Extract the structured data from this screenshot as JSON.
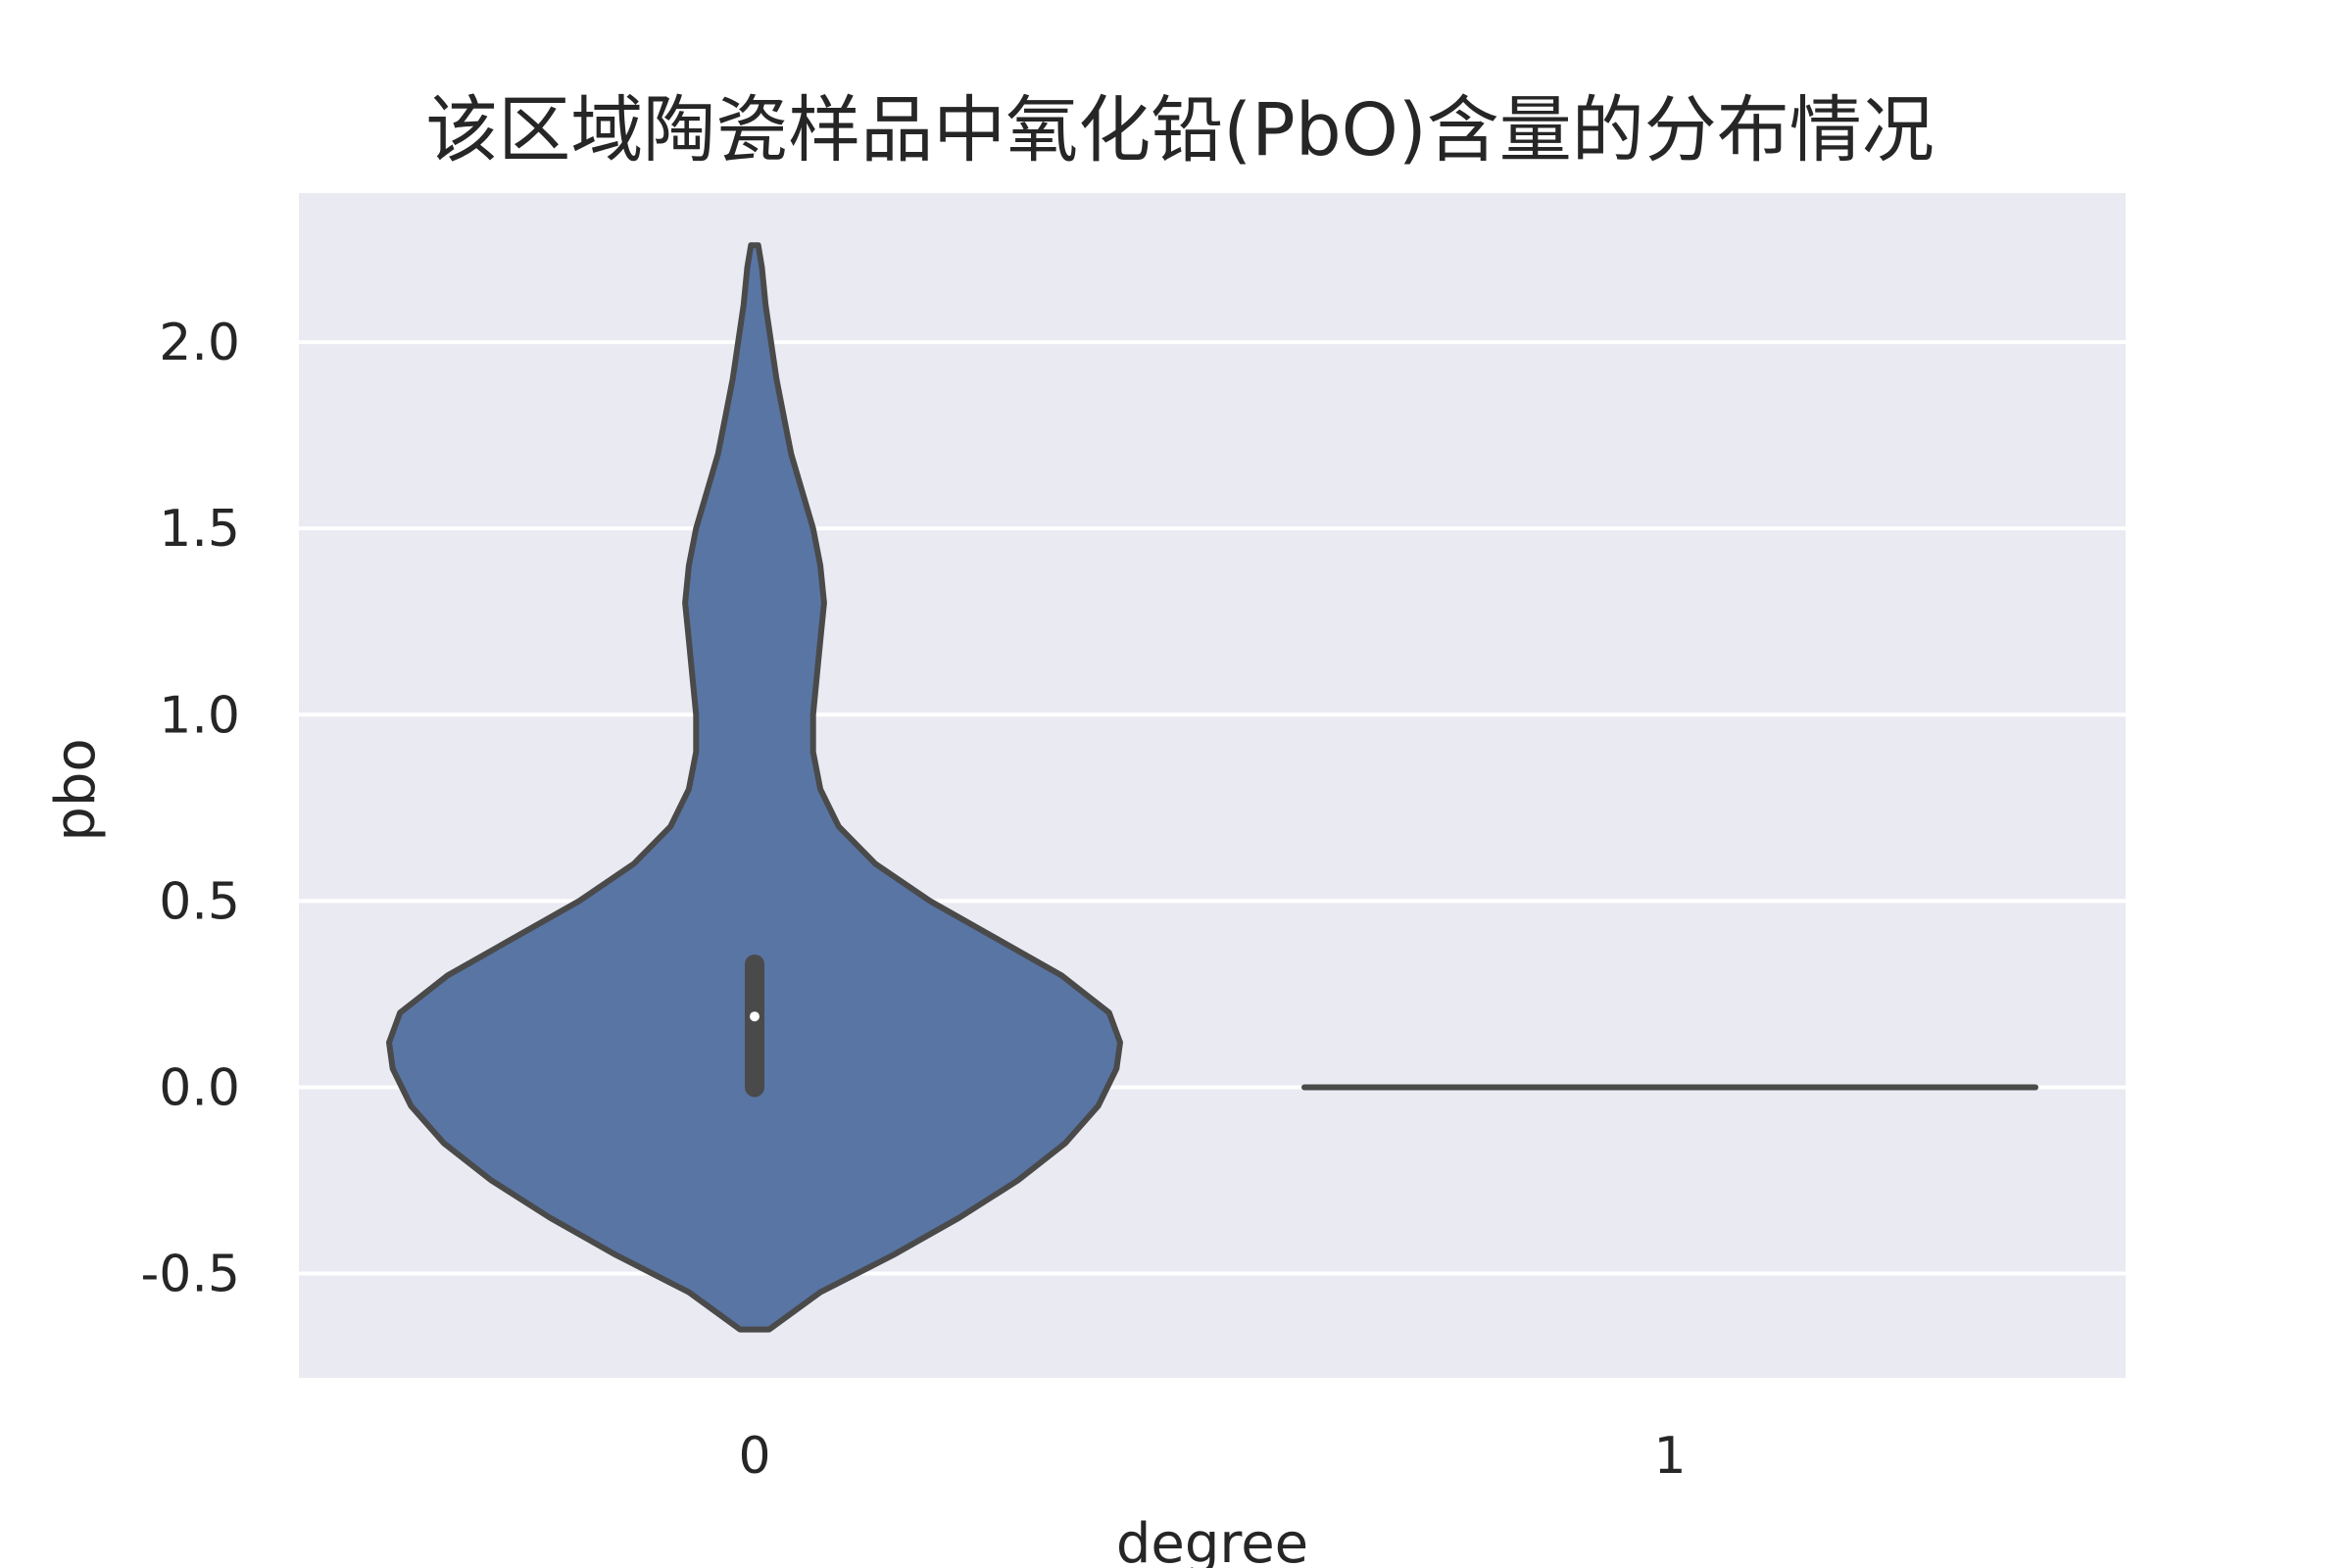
{
  "chart_data": {
    "type": "violin",
    "title": "该区域陶瓷样品中氧化铅(PbO)含量的分布情况",
    "xlabel": "degree",
    "ylabel": "pbo",
    "categories": [
      "0",
      "1"
    ],
    "y_ticks": [
      -0.5,
      0.0,
      0.5,
      1.0,
      1.5,
      2.0
    ],
    "y_tick_labels": [
      "-0.5",
      "0.0",
      "0.5",
      "1.0",
      "1.5",
      "2.0"
    ],
    "ylim": [
      -0.78,
      2.4
    ],
    "grid": true,
    "series": [
      {
        "category": "0",
        "color": "#5975a4",
        "edge_color": "#4a4a4a",
        "min": -0.65,
        "max": 2.26,
        "median": 0.19,
        "q1": 0.0,
        "q3": 0.33,
        "density_profile": [
          [
            -0.65,
            0.04
          ],
          [
            -0.55,
            0.18
          ],
          [
            -0.45,
            0.38
          ],
          [
            -0.35,
            0.56
          ],
          [
            -0.25,
            0.72
          ],
          [
            -0.15,
            0.85
          ],
          [
            -0.05,
            0.94
          ],
          [
            0.05,
            0.99
          ],
          [
            0.12,
            1.0
          ],
          [
            0.2,
            0.97
          ],
          [
            0.3,
            0.84
          ],
          [
            0.4,
            0.66
          ],
          [
            0.5,
            0.48
          ],
          [
            0.6,
            0.33
          ],
          [
            0.7,
            0.23
          ],
          [
            0.8,
            0.18
          ],
          [
            0.9,
            0.16
          ],
          [
            1.0,
            0.16
          ],
          [
            1.1,
            0.17
          ],
          [
            1.2,
            0.18
          ],
          [
            1.3,
            0.19
          ],
          [
            1.4,
            0.18
          ],
          [
            1.5,
            0.16
          ],
          [
            1.6,
            0.13
          ],
          [
            1.7,
            0.1
          ],
          [
            1.8,
            0.08
          ],
          [
            1.9,
            0.06
          ],
          [
            2.0,
            0.045
          ],
          [
            2.1,
            0.03
          ],
          [
            2.2,
            0.02
          ],
          [
            2.26,
            0.01
          ]
        ]
      },
      {
        "category": "1",
        "color": "#5975a4",
        "edge_color": "#4a4a4a",
        "value": 0.0
      }
    ],
    "colors": {
      "plot_background": "#eaeaf2",
      "grid": "#ffffff",
      "text": "#262626",
      "median_dot": "#ffffff"
    }
  }
}
